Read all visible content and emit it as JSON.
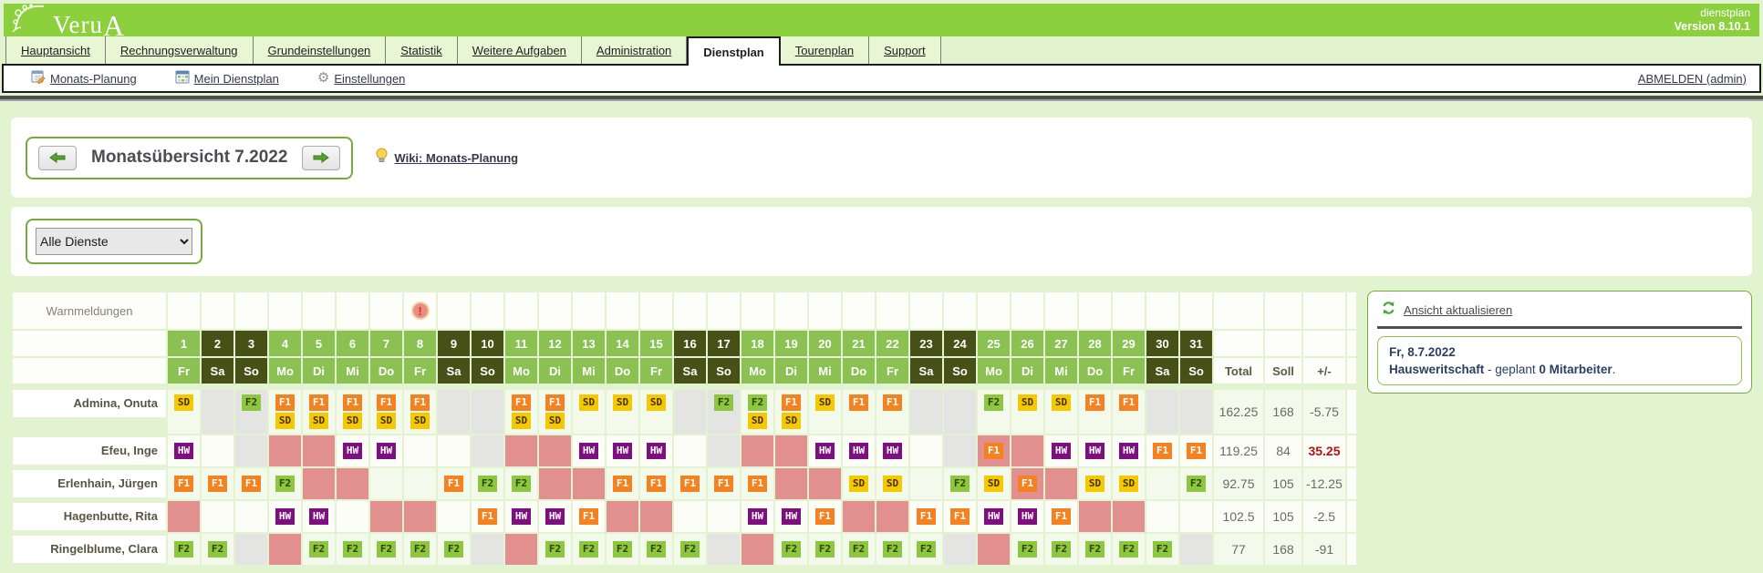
{
  "header": {
    "logo": "VeruA",
    "app_name": "dienstplan",
    "version": "Version 8.10.1"
  },
  "tabs": [
    {
      "label": "Hauptansicht",
      "active": false
    },
    {
      "label": "Rechnungsverwaltung",
      "active": false
    },
    {
      "label": "Grundeinstellungen",
      "active": false
    },
    {
      "label": "Statistik",
      "active": false
    },
    {
      "label": "Weitere Aufgaben",
      "active": false
    },
    {
      "label": "Administration",
      "active": false
    },
    {
      "label": "Dienstplan",
      "active": true
    },
    {
      "label": "Tourenplan",
      "active": false
    },
    {
      "label": "Support",
      "active": false
    }
  ],
  "toolbar": {
    "items": [
      {
        "label": "Monats-Planung",
        "icon": "calendar-pencil-icon"
      },
      {
        "label": "Mein Dienstplan",
        "icon": "calendar-icon"
      },
      {
        "label": "Einstellungen",
        "icon": "gear-icon"
      }
    ],
    "logout": "ABMELDEN (admin)"
  },
  "month_nav": {
    "title": "Monatsübersicht 7.2022",
    "wiki_link": "Wiki: Monats-Planung"
  },
  "filter": {
    "selected": "Alle Dienste"
  },
  "roster": {
    "warn_label": "Warnmeldungen",
    "warning_day": 8,
    "totals_headers": [
      "Total",
      "Soll",
      "+/-"
    ],
    "days": [
      {
        "num": 1,
        "dow": "Fr",
        "weekend": false
      },
      {
        "num": 2,
        "dow": "Sa",
        "weekend": true
      },
      {
        "num": 3,
        "dow": "So",
        "weekend": true
      },
      {
        "num": 4,
        "dow": "Mo",
        "weekend": false
      },
      {
        "num": 5,
        "dow": "Di",
        "weekend": false
      },
      {
        "num": 6,
        "dow": "Mi",
        "weekend": false
      },
      {
        "num": 7,
        "dow": "Do",
        "weekend": false
      },
      {
        "num": 8,
        "dow": "Fr",
        "weekend": false
      },
      {
        "num": 9,
        "dow": "Sa",
        "weekend": true
      },
      {
        "num": 10,
        "dow": "So",
        "weekend": true
      },
      {
        "num": 11,
        "dow": "Mo",
        "weekend": false
      },
      {
        "num": 12,
        "dow": "Di",
        "weekend": false
      },
      {
        "num": 13,
        "dow": "Mi",
        "weekend": false
      },
      {
        "num": 14,
        "dow": "Do",
        "weekend": false
      },
      {
        "num": 15,
        "dow": "Fr",
        "weekend": false
      },
      {
        "num": 16,
        "dow": "Sa",
        "weekend": true
      },
      {
        "num": 17,
        "dow": "So",
        "weekend": true
      },
      {
        "num": 18,
        "dow": "Mo",
        "weekend": false
      },
      {
        "num": 19,
        "dow": "Di",
        "weekend": false
      },
      {
        "num": 20,
        "dow": "Mi",
        "weekend": false
      },
      {
        "num": 21,
        "dow": "Do",
        "weekend": false
      },
      {
        "num": 22,
        "dow": "Fr",
        "weekend": false
      },
      {
        "num": 23,
        "dow": "Sa",
        "weekend": true
      },
      {
        "num": 24,
        "dow": "So",
        "weekend": true
      },
      {
        "num": 25,
        "dow": "Mo",
        "weekend": false
      },
      {
        "num": 26,
        "dow": "Di",
        "weekend": false
      },
      {
        "num": 27,
        "dow": "Mi",
        "weekend": false
      },
      {
        "num": 28,
        "dow": "Do",
        "weekend": false
      },
      {
        "num": 29,
        "dow": "Fr",
        "weekend": false
      },
      {
        "num": 30,
        "dow": "Sa",
        "weekend": true
      },
      {
        "num": 31,
        "dow": "So",
        "weekend": true
      }
    ],
    "shift_types": {
      "SD": {
        "bg": "#f6c800",
        "fg": "#453200"
      },
      "F1": {
        "bg": "#f58220",
        "fg": "#ffffff"
      },
      "F2": {
        "bg": "#8dc63f",
        "fg": "#2f4409"
      },
      "HW": {
        "bg": "#7d0f7e",
        "fg": "#ffffff"
      }
    },
    "cell_colors": {
      "frei": "#e4e4e2",
      "urlaub": "#e2908f",
      "row_odd": "#f3f9eb",
      "row_even": "#fcfdf7"
    },
    "employees": [
      {
        "name": "Admina, Onuta",
        "two_lines": true,
        "cells": [
          "SD",
          "frei",
          "frei+F2",
          "F1+SD",
          "F1+SD",
          "F1+SD",
          "F1+SD",
          "F1+SD",
          "frei",
          "frei",
          "F1+SD",
          "F1+SD",
          "SD",
          "SD",
          "SD",
          "frei",
          "frei+F2",
          "F2+SD",
          "F1+SD",
          "SD",
          "F1",
          "F1",
          "frei",
          "frei",
          "F2",
          "SD",
          "SD",
          "F1",
          "F1",
          "frei",
          "frei"
        ],
        "total": "162.25",
        "soll": "168",
        "diff": "-5.75",
        "diff_alert": false
      },
      {
        "name": "Efeu, Inge",
        "two_lines": false,
        "cells": [
          "HW",
          "",
          "frei",
          "urlaub",
          "urlaub",
          "HW",
          "HW",
          "",
          "",
          "frei",
          "urlaub",
          "urlaub",
          "HW",
          "HW",
          "HW",
          "",
          "frei",
          "urlaub",
          "urlaub",
          "HW",
          "HW",
          "HW",
          "",
          "frei",
          "urlaub+F1",
          "urlaub",
          "HW",
          "HW",
          "HW",
          "F1",
          "F1"
        ],
        "total": "119.25",
        "soll": "84",
        "diff": "35.25",
        "diff_alert": true
      },
      {
        "name": "Erlenhain, Jürgen",
        "two_lines": false,
        "cells": [
          "F1",
          "F1",
          "F1",
          "F2",
          "urlaub",
          "urlaub",
          "",
          "",
          "F1",
          "F2",
          "F2",
          "urlaub",
          "urlaub",
          "F1",
          "F1",
          "F1",
          "F1",
          "F1",
          "urlaub",
          "urlaub",
          "SD",
          "SD",
          "",
          "F2",
          "SD",
          "urlaub+F1",
          "urlaub",
          "SD",
          "SD",
          "",
          "F2"
        ],
        "total": "92.75",
        "soll": "105",
        "diff": "-12.25",
        "diff_alert": false
      },
      {
        "name": "Hagenbutte, Rita",
        "two_lines": false,
        "cells": [
          "urlaub",
          "",
          "",
          "HW",
          "HW",
          "",
          "urlaub",
          "urlaub",
          "",
          "F1",
          "HW",
          "HW",
          "F1",
          "urlaub",
          "urlaub",
          "",
          "",
          "HW",
          "HW",
          "F1",
          "urlaub",
          "urlaub",
          "F1",
          "F1",
          "HW",
          "HW",
          "F1",
          "urlaub",
          "urlaub",
          "",
          ""
        ],
        "total": "102.5",
        "soll": "105",
        "diff": "-2.5",
        "diff_alert": false
      },
      {
        "name": "Ringelblume, Clara",
        "two_lines": false,
        "cells": [
          "F2",
          "F2",
          "frei",
          "urlaub",
          "F2",
          "F2",
          "F2",
          "F2",
          "F2",
          "frei",
          "urlaub",
          "F2",
          "F2",
          "F2",
          "F2",
          "F2",
          "frei",
          "urlaub",
          "F2",
          "F2",
          "F2",
          "F2",
          "F2",
          "frei",
          "urlaub",
          "F2",
          "F2",
          "F2",
          "F2",
          "F2",
          "frei"
        ],
        "total": "77",
        "soll": "168",
        "diff": "-91",
        "diff_alert": false
      }
    ]
  },
  "side_panel": {
    "refresh_label": "Ansicht aktualisieren",
    "date": "Fr, 8.7.2022",
    "info_bold1": "Hausweritschaft",
    "info_text1": " - geplant ",
    "info_bold2": "0 Mitarbeiter",
    "info_text2": "."
  }
}
